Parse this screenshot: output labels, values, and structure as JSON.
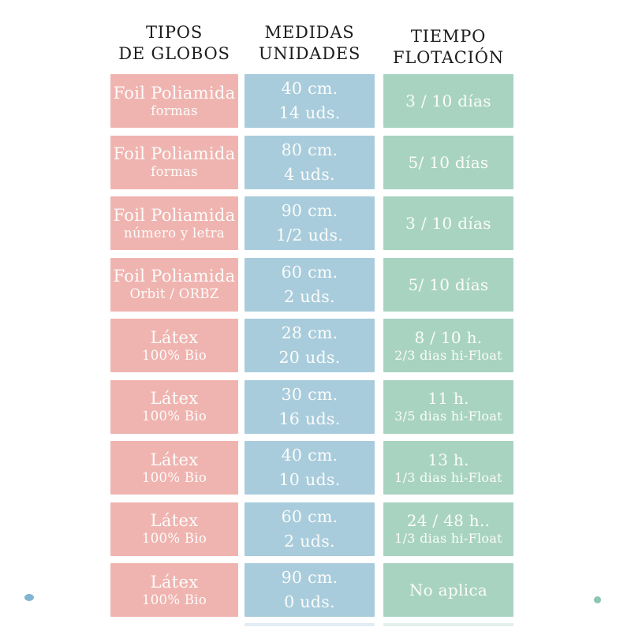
{
  "colors": {
    "pink": "#f0b4b0",
    "blue": "#a8ccdc",
    "green": "#a8d3c1",
    "header_text": "#1c1c1c",
    "cell_text": "#fcfcfa",
    "dot_blue": "#7fb5d3",
    "dot_teal": "#8cc5b0"
  },
  "headers": [
    {
      "line1": "TIPOS",
      "line2": "DE GLOBOS"
    },
    {
      "line1": "MEDIDAS",
      "line2": "UNIDADES"
    },
    {
      "line1": "TIEMPO",
      "line2": "FLOTACIÓN"
    }
  ],
  "rows": [
    {
      "type": {
        "main": "Foil Poliamida",
        "sub": "formas"
      },
      "measure": {
        "size": "40 cm.",
        "units": "14 uds."
      },
      "float": {
        "main": "3 / 10 días",
        "sub": ""
      }
    },
    {
      "type": {
        "main": "Foil Poliamida",
        "sub": "formas"
      },
      "measure": {
        "size": "80 cm.",
        "units": "4 uds."
      },
      "float": {
        "main": "5/ 10 días",
        "sub": ""
      }
    },
    {
      "type": {
        "main": "Foil Poliamida",
        "sub": "número y letra"
      },
      "measure": {
        "size": "90 cm.",
        "units": "1/2 uds."
      },
      "float": {
        "main": "3 / 10 días",
        "sub": ""
      }
    },
    {
      "type": {
        "main": "Foil Poliamida",
        "sub": "Orbit / ORBZ"
      },
      "measure": {
        "size": "60 cm.",
        "units": "2 uds."
      },
      "float": {
        "main": "5/ 10 días",
        "sub": ""
      }
    },
    {
      "type": {
        "main": "Látex",
        "sub": "100% Bio"
      },
      "measure": {
        "size": "28 cm.",
        "units": "20 uds."
      },
      "float": {
        "main": "8 / 10 h.",
        "sub": "2/3 dias hi-Float"
      }
    },
    {
      "type": {
        "main": "Látex",
        "sub": "100% Bio"
      },
      "measure": {
        "size": "30 cm.",
        "units": "16 uds."
      },
      "float": {
        "main": "11 h.",
        "sub": "3/5 dias hi-Float"
      }
    },
    {
      "type": {
        "main": "Látex",
        "sub": "100% Bio"
      },
      "measure": {
        "size": "40 cm.",
        "units": "10 uds."
      },
      "float": {
        "main": "13 h.",
        "sub": "1/3 dias hi-Float"
      }
    },
    {
      "type": {
        "main": "Látex",
        "sub": "100% Bio"
      },
      "measure": {
        "size": "60 cm.",
        "units": "2 uds."
      },
      "float": {
        "main": "24 / 48 h..",
        "sub": "1/3 dias hi-Float"
      }
    },
    {
      "type": {
        "main": "Látex",
        "sub": "100% Bio"
      },
      "measure": {
        "size": "90 cm.",
        "units": "0 uds."
      },
      "float": {
        "main": "No aplica",
        "sub": ""
      }
    }
  ],
  "chart_data": {
    "type": "table",
    "columns": [
      "TIPOS DE GLOBOS",
      "MEDIDAS UNIDADES",
      "TIEMPO FLOTACIÓN"
    ],
    "rows": [
      [
        "Foil Poliamida formas",
        "40 cm. 14 uds.",
        "3 / 10 días"
      ],
      [
        "Foil Poliamida formas",
        "80 cm. 4 uds.",
        "5/ 10 días"
      ],
      [
        "Foil Poliamida número y letra",
        "90 cm. 1/2 uds.",
        "3 / 10 días"
      ],
      [
        "Foil Poliamida Orbit / ORBZ",
        "60 cm. 2 uds.",
        "5/ 10 días"
      ],
      [
        "Látex 100% Bio",
        "28 cm. 20 uds.",
        "8 / 10 h. 2/3 dias hi-Float"
      ],
      [
        "Látex 100% Bio",
        "30 cm. 16 uds.",
        "11 h. 3/5 dias hi-Float"
      ],
      [
        "Látex 100% Bio",
        "40 cm. 10 uds.",
        "13 h. 1/3 dias hi-Float"
      ],
      [
        "Látex 100% Bio",
        "60 cm. 2 uds.",
        "24 / 48 h.. 1/3 dias hi-Float"
      ],
      [
        "Látex 100% Bio",
        "90 cm. 0 uds.",
        "No aplica"
      ]
    ],
    "title": "",
    "legend": "none",
    "grid": false
  }
}
